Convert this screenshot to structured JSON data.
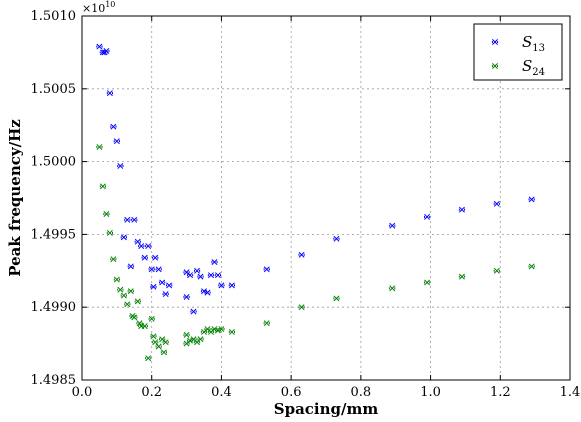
{
  "chart_data": {
    "type": "scatter",
    "title": "",
    "xlabel": "Spacing/mm",
    "ylabel": "Peak frequency/Hz",
    "xlim": [
      0.0,
      1.4
    ],
    "ylim": [
      1.4985,
      1.501
    ],
    "y_scale_note": "×10",
    "y_scale_exponent": "10",
    "x_ticks": [
      "0.0",
      "0.2",
      "0.4",
      "0.6",
      "0.8",
      "1.0",
      "1.2",
      "1.4"
    ],
    "y_ticks": [
      "1.4985",
      "1.4990",
      "1.4995",
      "1.5000",
      "1.5005",
      "1.5010"
    ],
    "grid": true,
    "legend_position": "top-right",
    "series": [
      {
        "name": "S",
        "name_sub": "13",
        "color": "#0000ff",
        "marker": "x",
        "points": [
          [
            0.05,
            1.50079
          ],
          [
            0.06,
            1.50075
          ],
          [
            0.065,
            1.50075
          ],
          [
            0.07,
            1.50076
          ],
          [
            0.08,
            1.50047
          ],
          [
            0.09,
            1.50024
          ],
          [
            0.1,
            1.50014
          ],
          [
            0.11,
            1.49997
          ],
          [
            0.12,
            1.49948
          ],
          [
            0.13,
            1.4996
          ],
          [
            0.14,
            1.49928
          ],
          [
            0.15,
            1.4996
          ],
          [
            0.16,
            1.49945
          ],
          [
            0.17,
            1.49942
          ],
          [
            0.18,
            1.49934
          ],
          [
            0.19,
            1.49942
          ],
          [
            0.2,
            1.49926
          ],
          [
            0.205,
            1.49914
          ],
          [
            0.21,
            1.49934
          ],
          [
            0.22,
            1.49926
          ],
          [
            0.23,
            1.49917
          ],
          [
            0.24,
            1.49909
          ],
          [
            0.25,
            1.49915
          ],
          [
            0.3,
            1.49924
          ],
          [
            0.3,
            1.49907
          ],
          [
            0.31,
            1.49922
          ],
          [
            0.32,
            1.49897
          ],
          [
            0.33,
            1.49925
          ],
          [
            0.34,
            1.49921
          ],
          [
            0.35,
            1.49911
          ],
          [
            0.36,
            1.4991
          ],
          [
            0.37,
            1.49922
          ],
          [
            0.38,
            1.49931
          ],
          [
            0.39,
            1.49922
          ],
          [
            0.4,
            1.49915
          ],
          [
            0.43,
            1.49915
          ],
          [
            0.53,
            1.49926
          ],
          [
            0.63,
            1.49936
          ],
          [
            0.73,
            1.49947
          ],
          [
            0.89,
            1.49956
          ],
          [
            0.99,
            1.49962
          ],
          [
            1.09,
            1.49967
          ],
          [
            1.19,
            1.49971
          ],
          [
            1.29,
            1.49974
          ]
        ]
      },
      {
        "name": "S",
        "name_sub": "24",
        "color": "#008000",
        "marker": "x",
        "points": [
          [
            0.05,
            1.5001
          ],
          [
            0.06,
            1.49983
          ],
          [
            0.07,
            1.49964
          ],
          [
            0.08,
            1.49951
          ],
          [
            0.09,
            1.49933
          ],
          [
            0.1,
            1.49919
          ],
          [
            0.11,
            1.49912
          ],
          [
            0.12,
            1.49908
          ],
          [
            0.13,
            1.49902
          ],
          [
            0.14,
            1.49911
          ],
          [
            0.145,
            1.49894
          ],
          [
            0.15,
            1.49893
          ],
          [
            0.16,
            1.49904
          ],
          [
            0.165,
            1.49889
          ],
          [
            0.17,
            1.49887
          ],
          [
            0.18,
            1.49887
          ],
          [
            0.19,
            1.49865
          ],
          [
            0.2,
            1.49892
          ],
          [
            0.205,
            1.4988
          ],
          [
            0.21,
            1.49876
          ],
          [
            0.22,
            1.49873
          ],
          [
            0.23,
            1.49878
          ],
          [
            0.235,
            1.49869
          ],
          [
            0.24,
            1.49876
          ],
          [
            0.3,
            1.49881
          ],
          [
            0.3,
            1.49875
          ],
          [
            0.31,
            1.49877
          ],
          [
            0.32,
            1.49878
          ],
          [
            0.33,
            1.49876
          ],
          [
            0.34,
            1.49878
          ],
          [
            0.35,
            1.49883
          ],
          [
            0.36,
            1.49885
          ],
          [
            0.37,
            1.49883
          ],
          [
            0.38,
            1.49885
          ],
          [
            0.39,
            1.49884
          ],
          [
            0.4,
            1.49885
          ],
          [
            0.43,
            1.49883
          ],
          [
            0.53,
            1.49889
          ],
          [
            0.63,
            1.499
          ],
          [
            0.73,
            1.49906
          ],
          [
            0.89,
            1.49913
          ],
          [
            0.99,
            1.49917
          ],
          [
            1.09,
            1.49921
          ],
          [
            1.19,
            1.49925
          ],
          [
            1.29,
            1.49928
          ]
        ]
      }
    ]
  }
}
